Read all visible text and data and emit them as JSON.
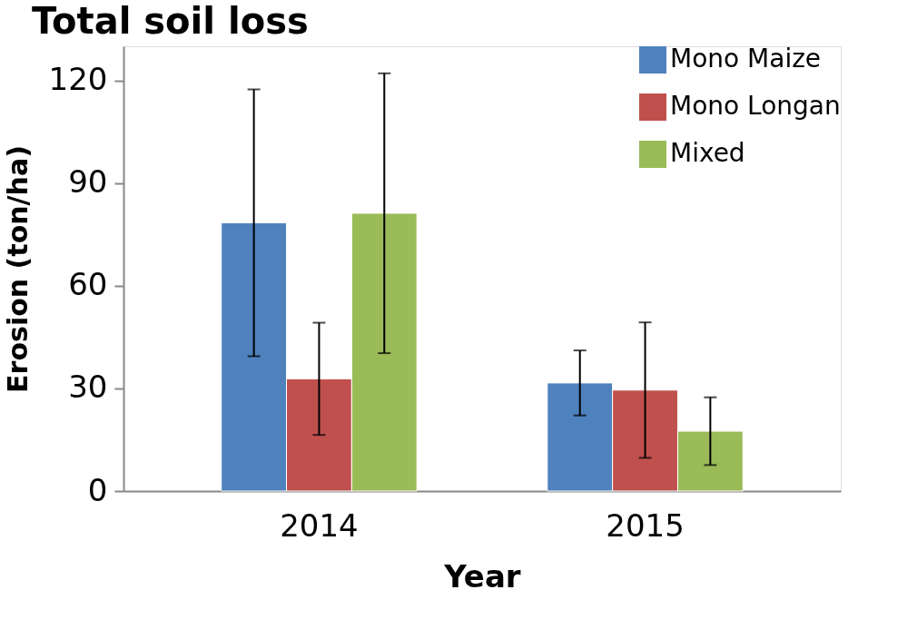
{
  "chart_data": {
    "type": "bar",
    "title": "Total soil loss",
    "xlabel": "Year",
    "ylabel": "Erosion (ton/ha)",
    "categories": [
      "2014",
      "2015"
    ],
    "series": [
      {
        "name": "Mono Maize",
        "color": "#4f81bd",
        "values": [
          78.4,
          31.6
        ],
        "errors": [
          39,
          9.5
        ]
      },
      {
        "name": "Mono Longan",
        "color": "#c0504d",
        "values": [
          32.8,
          29.5
        ],
        "errors": [
          16.4,
          19.8
        ]
      },
      {
        "name": "Mixed",
        "color": "#9bbb59",
        "values": [
          81.2,
          17.5
        ],
        "errors": [
          40.9,
          9.9
        ]
      }
    ],
    "ylim": [
      0,
      130
    ],
    "yticks": [
      0,
      30,
      60,
      90,
      120
    ],
    "legend": "top right",
    "grid": false
  }
}
